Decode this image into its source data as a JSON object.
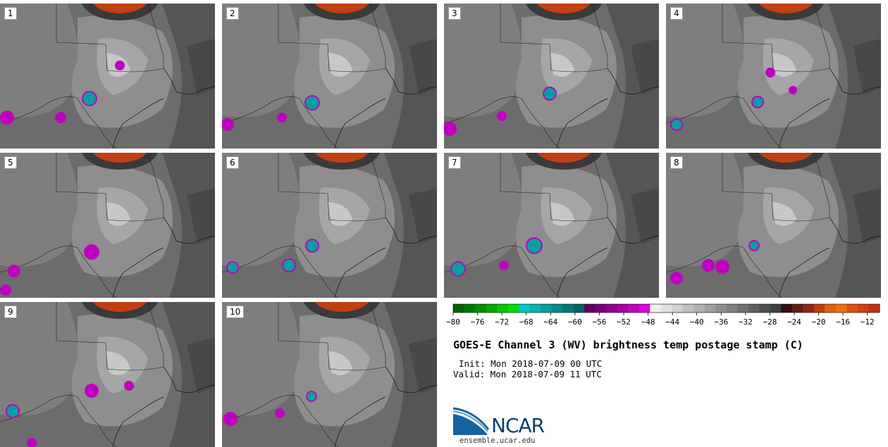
{
  "chart_data": {
    "type": "heatmap",
    "title": "GOES-E Channel 3 (WV) brightness temp postage stamp (C)",
    "init": "Init: Mon 2018-07-09 00 UTC",
    "valid": "Valid: Mon 2018-07-09 11 UTC",
    "members": [
      "1",
      "2",
      "3",
      "4",
      "5",
      "6",
      "7",
      "8",
      "9",
      "10"
    ],
    "colorbar": {
      "ticks": [
        -80,
        -76,
        -72,
        -68,
        -64,
        -60,
        -56,
        -52,
        -48,
        -44,
        -40,
        -36,
        -32,
        -28,
        -24,
        -20,
        -16,
        -12
      ],
      "min": -80,
      "max": -10,
      "bin_width": 2,
      "colors": [
        "#006400",
        "#007800",
        "#009000",
        "#00a800",
        "#00c800",
        "#00e000",
        "#00c8c8",
        "#00b4b4",
        "#00a0a0",
        "#008c8c",
        "#007878",
        "#006464",
        "#600060",
        "#780078",
        "#900090",
        "#a800a8",
        "#c000c0",
        "#e000e0",
        "#f0f0f0",
        "#e0e0e0",
        "#d0d0d0",
        "#c0c0c0",
        "#b0b0b0",
        "#a0a0a0",
        "#909090",
        "#808080",
        "#707070",
        "#606060",
        "#505050",
        "#404040",
        "#301010",
        "#602010",
        "#902818",
        "#c04010",
        "#e06010",
        "#f07010",
        "#e05010",
        "#d04010",
        "#c83010"
      ]
    }
  },
  "branding": {
    "logo_text": "NCAR",
    "url": "ensemble.ucar.edu"
  }
}
